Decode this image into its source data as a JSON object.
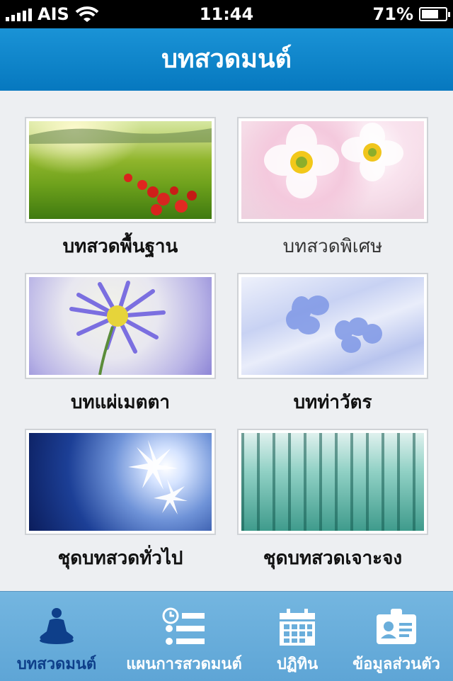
{
  "status": {
    "carrier": "AIS",
    "time": "11:44",
    "battery": "71%",
    "battery_level": 0.71
  },
  "header": {
    "title": "บทสวดมนต์"
  },
  "tiles": [
    {
      "label": "บทสวดพื้นฐาน",
      "image": "rice-field-flowers"
    },
    {
      "label": "บทสวดพิเศษ",
      "image": "pink-anemones"
    },
    {
      "label": "บทแผ่เมตตา",
      "image": "purple-aster"
    },
    {
      "label": "บทท่าวัตร",
      "image": "blue-petals-on-silk"
    },
    {
      "label": "ชุดบทสวดทั่วไป",
      "image": "white-star-flowers-blue"
    },
    {
      "label": "ชุดบทสวดเจาะจง",
      "image": "bamboo-forest"
    }
  ],
  "tabs": [
    {
      "label": "บทสวดมนต์",
      "icon": "meditation-icon",
      "active": true
    },
    {
      "label": "แผนการสวดมนต์",
      "icon": "schedule-list-icon",
      "active": false
    },
    {
      "label": "ปฏิทิน",
      "icon": "calendar-icon",
      "active": false
    },
    {
      "label": "ข้อมูลส่วนตัว",
      "icon": "id-card-icon",
      "active": false
    }
  ],
  "colors": {
    "header": "#0a7fc6",
    "tabbar": "#6aaedb",
    "active_tab": "#0e3f8a"
  }
}
